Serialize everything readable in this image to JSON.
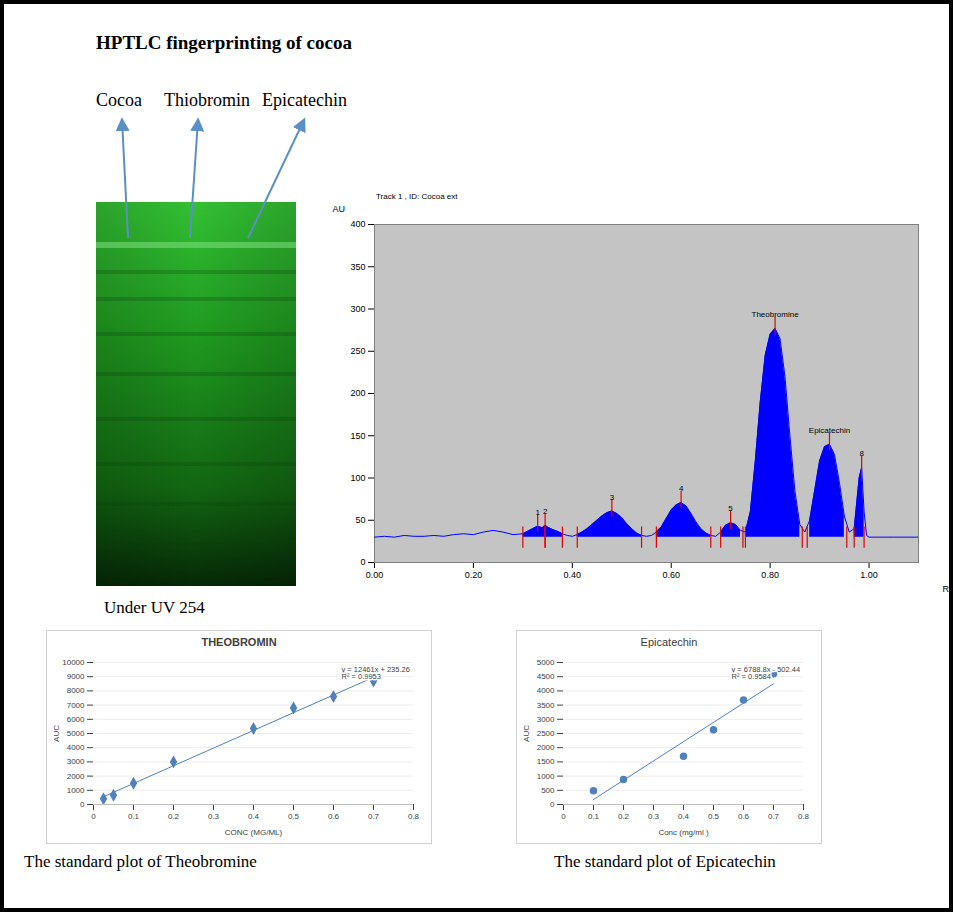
{
  "title": "HPTLC fingerprinting of cocoa",
  "plate": {
    "lanes": [
      "Cocoa",
      "Thiobromin",
      "Epicatechin"
    ],
    "caption": "Under UV 254"
  },
  "chart_data": [
    {
      "type": "line",
      "title": "Track 1 , ID: Cocoa ext",
      "xlabel": "Rf",
      "ylabel": "AU",
      "x": [
        0.0,
        0.02,
        0.04,
        0.06,
        0.08,
        0.1,
        0.12,
        0.14,
        0.16,
        0.18,
        0.2,
        0.22,
        0.24,
        0.26,
        0.28,
        0.3,
        0.31,
        0.32,
        0.33,
        0.34,
        0.345,
        0.35,
        0.36,
        0.37,
        0.38,
        0.39,
        0.4,
        0.41,
        0.42,
        0.43,
        0.44,
        0.45,
        0.46,
        0.47,
        0.48,
        0.49,
        0.5,
        0.51,
        0.52,
        0.53,
        0.54,
        0.55,
        0.56,
        0.57,
        0.58,
        0.59,
        0.6,
        0.61,
        0.62,
        0.63,
        0.64,
        0.65,
        0.66,
        0.67,
        0.68,
        0.69,
        0.7,
        0.71,
        0.72,
        0.73,
        0.74,
        0.75,
        0.76,
        0.77,
        0.78,
        0.79,
        0.8,
        0.81,
        0.82,
        0.83,
        0.84,
        0.85,
        0.86,
        0.87,
        0.88,
        0.89,
        0.9,
        0.91,
        0.92,
        0.93,
        0.94,
        0.95,
        0.96,
        0.97,
        0.975,
        0.98,
        0.985,
        0.99,
        0.995,
        1.0,
        1.05,
        1.1
      ],
      "values": [
        30,
        31,
        30,
        32,
        31,
        31,
        32,
        31,
        33,
        34,
        33,
        36,
        38,
        36,
        33,
        34,
        37,
        40,
        43,
        41,
        44,
        42,
        39,
        37,
        34,
        32,
        31,
        33,
        36,
        40,
        45,
        50,
        55,
        59,
        61,
        58,
        53,
        46,
        40,
        35,
        32,
        31,
        32,
        36,
        42,
        52,
        62,
        68,
        71,
        67,
        58,
        48,
        40,
        35,
        32,
        31,
        36,
        44,
        47,
        45,
        38,
        36,
        60,
        120,
        190,
        245,
        270,
        277,
        265,
        220,
        150,
        85,
        45,
        36,
        50,
        85,
        120,
        137,
        140,
        128,
        95,
        55,
        36,
        40,
        70,
        100,
        112,
        60,
        32,
        30,
        30,
        30
      ],
      "color": "#0000ff",
      "baseline": 30,
      "peaks": [
        {
          "label": "1",
          "rf": 0.33,
          "height": 43,
          "start": 0.3,
          "end": 0.345
        },
        {
          "label": "2",
          "rf": 0.345,
          "height": 44,
          "start": 0.345,
          "end": 0.38
        },
        {
          "label": "3",
          "rf": 0.48,
          "height": 61,
          "start": 0.41,
          "end": 0.54
        },
        {
          "label": "4",
          "rf": 0.62,
          "height": 71,
          "start": 0.57,
          "end": 0.68
        },
        {
          "label": "5",
          "rf": 0.72,
          "height": 47,
          "start": 0.7,
          "end": 0.745
        },
        {
          "label": "Theobromine",
          "rf": 0.81,
          "height": 277,
          "start": 0.75,
          "end": 0.865
        },
        {
          "label": "Epicatechin",
          "rf": 0.92,
          "height": 140,
          "start": 0.875,
          "end": 0.955
        },
        {
          "label": "8",
          "rf": 0.985,
          "height": 112,
          "start": 0.97,
          "end": 0.99
        }
      ],
      "xlim": [
        0,
        1.1
      ],
      "ylim": [
        0,
        400
      ],
      "xticks": [
        {
          "value": 0,
          "label": "0.00"
        },
        {
          "value": 0.2,
          "label": "0.20"
        },
        {
          "value": 0.4,
          "label": "0.40"
        },
        {
          "value": 0.6,
          "label": "0.60"
        },
        {
          "value": 0.8,
          "label": "0.80"
        },
        {
          "value": 1,
          "label": "1.00"
        }
      ],
      "yticks": [
        0,
        50,
        100,
        150,
        200,
        250,
        300,
        350,
        400
      ],
      "grid": false
    },
    {
      "type": "scatter",
      "title": "THEOBROMIN",
      "caption": "The standard plot of Theobromine",
      "xlabel": "CONC (MG/ML)",
      "ylabel": "AUC",
      "x": [
        0.025,
        0.05,
        0.1,
        0.2,
        0.4,
        0.5,
        0.6,
        0.7
      ],
      "values": [
        400,
        650,
        1500,
        3000,
        5350,
        6800,
        7600,
        8700
      ],
      "trendline": {
        "x": [
          0.025,
          0.7
        ],
        "values": [
          547,
          8958
        ]
      },
      "annotations": [
        "y = 12461x + 235.26",
        "R² = 0.9953"
      ],
      "color": "#4f81bd",
      "marker": "diamond",
      "xlim": [
        0,
        0.8
      ],
      "ylim": [
        0,
        10000
      ],
      "xticks": [
        0,
        0.1,
        0.2,
        0.3,
        0.4,
        0.5,
        0.6,
        0.7,
        0.8
      ],
      "yticks": [
        0,
        1000,
        2000,
        3000,
        4000,
        5000,
        6000,
        7000,
        8000,
        9000,
        10000
      ],
      "grid": true
    },
    {
      "type": "scatter",
      "title": "Epicatechin",
      "caption": "The standard plot of Epicatechin",
      "xlabel": "Conc (mg/ml )",
      "ylabel": "AUC",
      "x": [
        0.1,
        0.2,
        0.4,
        0.5,
        0.6,
        0.7
      ],
      "values": [
        480,
        880,
        1700,
        2630,
        3680,
        4600
      ],
      "trendline": {
        "x": [
          0.1,
          0.7
        ],
        "values": [
          176,
          4250
        ]
      },
      "annotations": [
        "y = 6788.8x - 502.44",
        "R² = 0.9584"
      ],
      "color": "#4f81bd",
      "marker": "circle",
      "xlim": [
        0,
        0.8
      ],
      "ylim": [
        0,
        5000
      ],
      "xticks": [
        0,
        0.1,
        0.2,
        0.3,
        0.4,
        0.5,
        0.6,
        0.7,
        0.8
      ],
      "yticks": [
        0,
        500,
        1000,
        1500,
        2000,
        2500,
        3000,
        3500,
        4000,
        4500,
        5000
      ],
      "grid": true
    }
  ]
}
